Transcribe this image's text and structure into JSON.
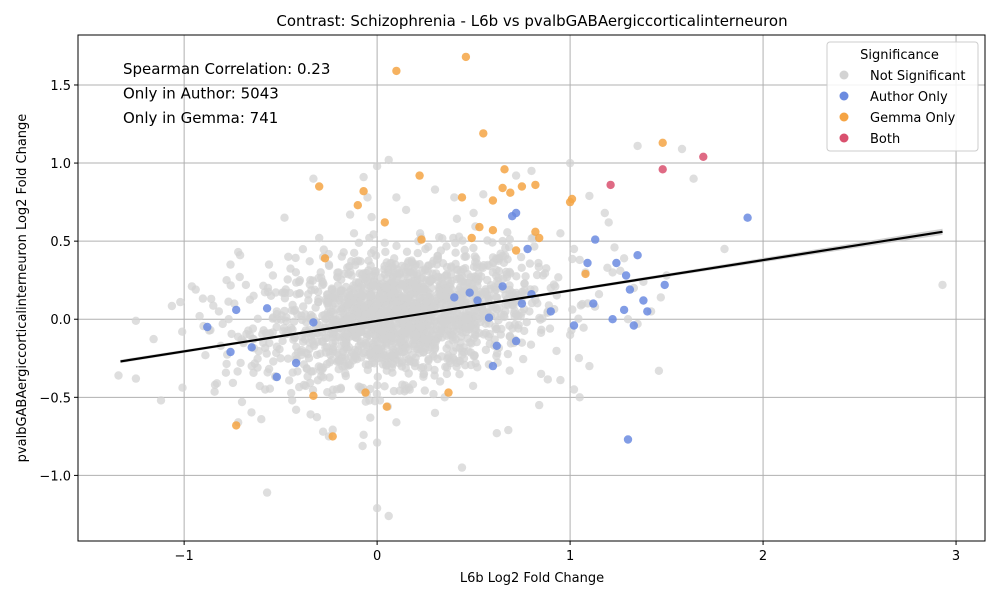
{
  "chart_data": {
    "type": "scatter",
    "title": "Contrast: Schizophrenia - L6b vs pvalbGABAergiccorticalinterneuron",
    "xlabel": "L6b Log2 Fold Change",
    "ylabel": "pvalbGABAergiccorticalinterneuron Log2 Fold Change",
    "xlim": [
      -1.55,
      3.15
    ],
    "ylim": [
      -1.42,
      1.82
    ],
    "x_ticks": [
      -1,
      0,
      1,
      2,
      3
    ],
    "x_tick_labels": [
      "−1",
      "0",
      "1",
      "2",
      "3"
    ],
    "y_ticks": [
      -1.0,
      -0.5,
      0.0,
      0.5,
      1.0,
      1.5
    ],
    "y_tick_labels": [
      "−1.0",
      "−0.5",
      "0.0",
      "0.5",
      "1.0",
      "1.5"
    ],
    "grid": true,
    "legend": {
      "title": "Significance",
      "position": "top-right",
      "entries": [
        {
          "label": "Not Significant",
          "color": "#d3d3d3"
        },
        {
          "label": "Author Only",
          "color": "#6b8be0"
        },
        {
          "label": "Gemma Only",
          "color": "#f5a444"
        },
        {
          "label": "Both",
          "color": "#d9506e"
        }
      ]
    },
    "annotations": [
      "Spearman Correlation: 0.23",
      "Only in Author: 5043",
      "Only in Gemma: 741"
    ],
    "regression": {
      "x": [
        -1.33,
        2.93
      ],
      "y": [
        -0.27,
        0.56
      ],
      "color": "#000000",
      "ci_color": "#c8c8c8"
    },
    "series": [
      {
        "name": "Not Significant",
        "color": "#d3d3d3",
        "points": [
          [
            -1.34,
            -0.36
          ],
          [
            -1.25,
            -0.38
          ],
          [
            -1.25,
            -0.01
          ],
          [
            -1.12,
            -0.52
          ],
          [
            -1.02,
            0.11
          ],
          [
            -1.01,
            -0.08
          ],
          [
            -0.96,
            0.21
          ],
          [
            -0.94,
            0.19
          ],
          [
            -0.92,
            0.02
          ],
          [
            -0.89,
            -0.23
          ],
          [
            -0.86,
            0.13
          ],
          [
            -0.84,
            -0.42
          ],
          [
            -0.83,
            -0.41
          ],
          [
            -0.82,
            0.05
          ],
          [
            -0.81,
            -0.17
          ],
          [
            -0.8,
            -0.03
          ],
          [
            -0.78,
            0.25
          ],
          [
            -0.76,
            0.35
          ],
          [
            -0.74,
            0.1
          ],
          [
            -0.72,
            0.43
          ],
          [
            -0.71,
            0.41
          ],
          [
            -0.72,
            -0.66
          ],
          [
            -0.7,
            -0.53
          ],
          [
            -0.68,
            0.22
          ],
          [
            -0.66,
            -0.1
          ],
          [
            -0.64,
            0.15
          ],
          [
            -0.62,
            -0.31
          ],
          [
            -0.6,
            -0.64
          ],
          [
            -0.58,
            -0.45
          ],
          [
            -0.57,
            -1.11
          ],
          [
            -0.56,
            0.35
          ],
          [
            -0.54,
            0.28
          ],
          [
            -0.52,
            0.05
          ],
          [
            -0.5,
            -0.25
          ],
          [
            -0.48,
            0.65
          ],
          [
            -0.46,
            0.4
          ],
          [
            -0.44,
            -0.52
          ],
          [
            -0.42,
            -0.58
          ],
          [
            -0.33,
            0.9
          ],
          [
            -0.3,
            0.52
          ],
          [
            -0.28,
            -0.72
          ],
          [
            -0.25,
            -0.75
          ],
          [
            -0.14,
            0.67
          ],
          [
            -0.12,
            0.55
          ],
          [
            -0.07,
            0.91
          ],
          [
            -0.07,
            -0.74
          ],
          [
            -0.05,
            0.78
          ],
          [
            -0.04,
            -0.52
          ],
          [
            0.0,
            0.98
          ],
          [
            0.0,
            -0.79
          ],
          [
            0.0,
            -1.21
          ],
          [
            0.06,
            1.02
          ],
          [
            0.06,
            -1.26
          ],
          [
            0.1,
            0.78
          ],
          [
            0.1,
            -0.66
          ],
          [
            0.15,
            0.7
          ],
          [
            0.3,
            0.83
          ],
          [
            0.3,
            -0.6
          ],
          [
            0.4,
            0.78
          ],
          [
            0.44,
            -0.95
          ],
          [
            0.5,
            0.68
          ],
          [
            0.55,
            0.8
          ],
          [
            0.62,
            -0.73
          ],
          [
            0.68,
            -0.71
          ],
          [
            0.72,
            0.92
          ],
          [
            0.8,
            0.95
          ],
          [
            0.84,
            -0.55
          ],
          [
            0.95,
            -0.39
          ],
          [
            1.0,
            1.0
          ],
          [
            1.02,
            0.45
          ],
          [
            1.02,
            -0.45
          ],
          [
            1.05,
            0.38
          ],
          [
            1.05,
            -0.5
          ],
          [
            1.08,
            0.3
          ],
          [
            1.1,
            0.79
          ],
          [
            1.1,
            -0.3
          ],
          [
            1.15,
            0.16
          ],
          [
            1.18,
            0.68
          ],
          [
            1.2,
            0.62
          ],
          [
            1.22,
            0.3
          ],
          [
            1.23,
            0.46
          ],
          [
            1.26,
            0.31
          ],
          [
            1.28,
            0.39
          ],
          [
            1.3,
            0.0
          ],
          [
            1.33,
            0.2
          ],
          [
            1.35,
            1.11
          ],
          [
            1.35,
            -0.03
          ],
          [
            1.38,
            0.24
          ],
          [
            1.42,
            0.05
          ],
          [
            1.46,
            -0.33
          ],
          [
            1.47,
            0.14
          ],
          [
            1.5,
            0.28
          ],
          [
            1.58,
            1.09
          ],
          [
            1.64,
            0.9
          ],
          [
            1.8,
            0.45
          ],
          [
            2.93,
            0.22
          ],
          [
            -0.2,
            0.3
          ],
          [
            -0.15,
            0.1
          ],
          [
            -0.1,
            -0.2
          ],
          [
            0.05,
            0.2
          ],
          [
            0.2,
            -0.1
          ],
          [
            0.35,
            0.15
          ],
          [
            0.45,
            -0.25
          ],
          [
            0.6,
            0.3
          ],
          [
            0.75,
            -0.15
          ],
          [
            0.9,
            0.2
          ],
          [
            -0.35,
            -0.15
          ],
          [
            0.25,
            0.45
          ],
          [
            0.15,
            -0.45
          ],
          [
            0.65,
            0.5
          ],
          [
            -0.4,
            0.25
          ],
          [
            0.85,
            -0.35
          ],
          [
            -0.65,
            -0.3
          ],
          [
            0.5,
            0.05
          ],
          [
            0.95,
            0.55
          ],
          [
            -0.55,
            0.15
          ],
          [
            0.35,
            -0.5
          ],
          [
            0.7,
            0.15
          ],
          [
            1.0,
            -0.1
          ],
          [
            -0.25,
            0.35
          ]
        ]
      },
      {
        "name": "Author Only",
        "color": "#6b8be0",
        "points": [
          [
            -0.88,
            -0.05
          ],
          [
            -0.76,
            -0.21
          ],
          [
            -0.73,
            0.06
          ],
          [
            -0.65,
            -0.18
          ],
          [
            -0.57,
            0.07
          ],
          [
            -0.52,
            -0.37
          ],
          [
            -0.42,
            -0.28
          ],
          [
            -0.33,
            -0.02
          ],
          [
            0.4,
            0.14
          ],
          [
            0.48,
            0.17
          ],
          [
            0.52,
            0.12
          ],
          [
            0.58,
            0.01
          ],
          [
            0.6,
            -0.3
          ],
          [
            0.62,
            -0.17
          ],
          [
            0.65,
            0.21
          ],
          [
            0.7,
            0.66
          ],
          [
            0.72,
            0.68
          ],
          [
            0.72,
            -0.14
          ],
          [
            0.75,
            0.1
          ],
          [
            0.78,
            0.45
          ],
          [
            0.8,
            0.16
          ],
          [
            0.9,
            0.05
          ],
          [
            1.02,
            -0.04
          ],
          [
            1.09,
            0.36
          ],
          [
            1.12,
            0.1
          ],
          [
            1.13,
            0.51
          ],
          [
            1.22,
            0.0
          ],
          [
            1.24,
            0.36
          ],
          [
            1.28,
            0.06
          ],
          [
            1.29,
            0.28
          ],
          [
            1.3,
            -0.77
          ],
          [
            1.31,
            0.19
          ],
          [
            1.33,
            -0.04
          ],
          [
            1.35,
            0.41
          ],
          [
            1.38,
            0.12
          ],
          [
            1.4,
            0.05
          ],
          [
            1.49,
            0.22
          ],
          [
            1.92,
            0.65
          ]
        ]
      },
      {
        "name": "Gemma Only",
        "color": "#f5a444",
        "points": [
          [
            -0.73,
            -0.68
          ],
          [
            -0.33,
            -0.49
          ],
          [
            -0.3,
            0.85
          ],
          [
            -0.27,
            0.39
          ],
          [
            -0.23,
            -0.75
          ],
          [
            -0.1,
            0.73
          ],
          [
            -0.07,
            0.82
          ],
          [
            -0.06,
            -0.47
          ],
          [
            0.04,
            0.62
          ],
          [
            0.05,
            -0.56
          ],
          [
            0.1,
            1.59
          ],
          [
            0.22,
            0.92
          ],
          [
            0.23,
            0.51
          ],
          [
            0.37,
            -0.47
          ],
          [
            0.44,
            0.78
          ],
          [
            0.46,
            1.68
          ],
          [
            0.49,
            0.52
          ],
          [
            0.53,
            0.59
          ],
          [
            0.55,
            1.19
          ],
          [
            0.6,
            0.76
          ],
          [
            0.6,
            0.57
          ],
          [
            0.65,
            0.84
          ],
          [
            0.66,
            0.96
          ],
          [
            0.69,
            0.81
          ],
          [
            0.72,
            0.44
          ],
          [
            0.75,
            0.85
          ],
          [
            0.82,
            0.86
          ],
          [
            0.82,
            0.56
          ],
          [
            0.84,
            0.52
          ],
          [
            1.0,
            0.75
          ],
          [
            1.01,
            0.77
          ],
          [
            1.08,
            0.29
          ],
          [
            1.48,
            1.13
          ]
        ]
      },
      {
        "name": "Both",
        "color": "#d9506e",
        "points": [
          [
            1.21,
            0.86
          ],
          [
            1.48,
            0.96
          ],
          [
            1.69,
            1.04
          ]
        ]
      }
    ]
  }
}
